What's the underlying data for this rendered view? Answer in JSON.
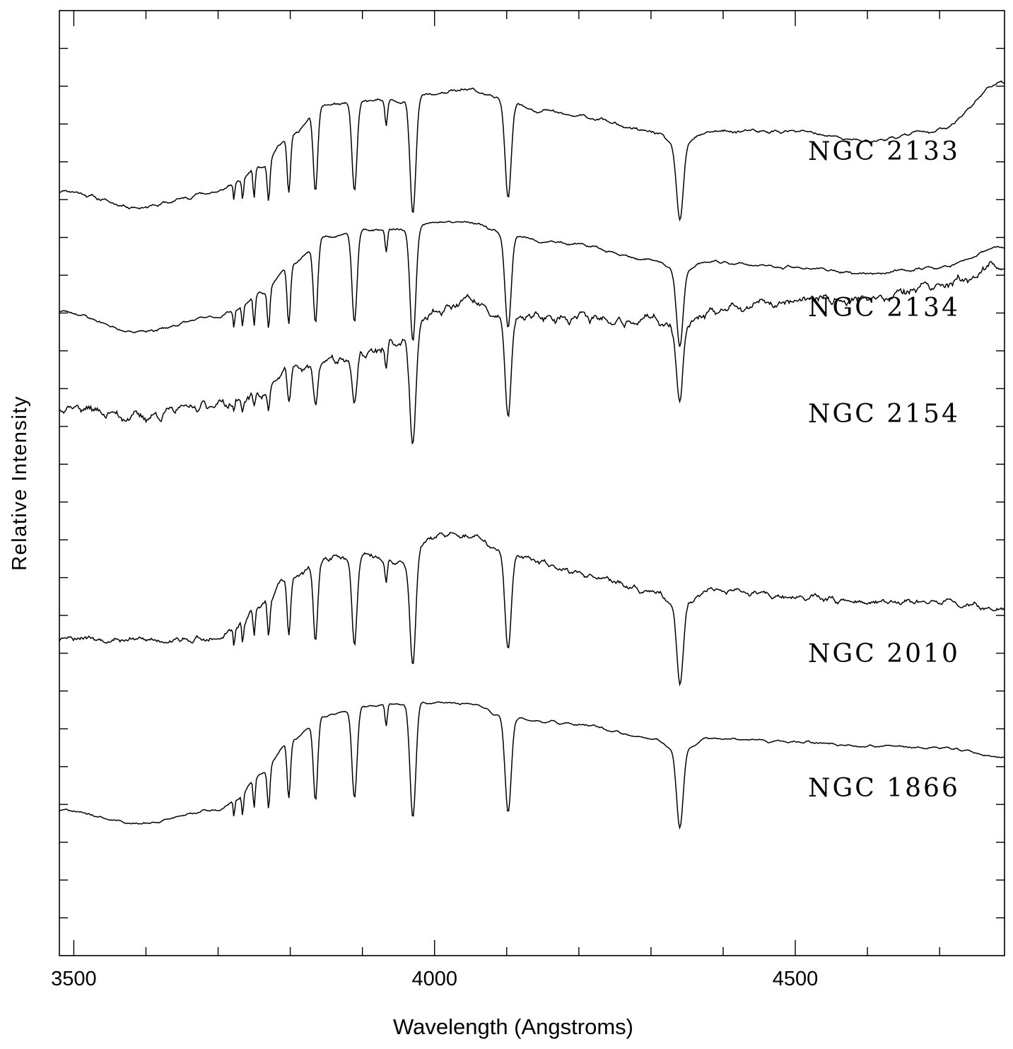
{
  "chart_data": {
    "type": "line",
    "xlabel": "Wavelength (Angstroms)",
    "ylabel": "Relative Intensity",
    "xlim": [
      3480,
      4790
    ],
    "x_ticks": [
      3500,
      4000,
      4500
    ],
    "x_tick_labels": [
      "3500",
      "4000",
      "4500"
    ],
    "x_minor_step": 100,
    "ylim": [
      0,
      25
    ],
    "y_tick_step": 1,
    "grid": false,
    "legend": "none",
    "spectrum_shape": {
      "balmer_lines": [
        {
          "x": 3722,
          "depth": 0.45,
          "width": 1.0
        },
        {
          "x": 3734,
          "depth": 0.55,
          "width": 1.2
        },
        {
          "x": 3750,
          "depth": 0.75,
          "width": 1.4
        },
        {
          "x": 3770,
          "depth": 1.05,
          "width": 1.8
        },
        {
          "x": 3798,
          "depth": 1.55,
          "width": 2.3
        },
        {
          "x": 3835,
          "depth": 2.1,
          "width": 3.0
        },
        {
          "x": 3889,
          "depth": 2.4,
          "width": 3.5
        },
        {
          "x": 3933,
          "depth": 0.6,
          "width": 1.6
        },
        {
          "x": 3970,
          "depth": 3.0,
          "width": 4.0
        },
        {
          "x": 4102,
          "depth": 2.5,
          "width": 4.2
        },
        {
          "x": 4340,
          "depth": 2.0,
          "width": 4.5
        }
      ],
      "continuum_knots_x": [
        3480,
        3590,
        3700,
        3720,
        3760,
        3800,
        3850,
        3900,
        3950,
        4000,
        4050,
        4100,
        4150,
        4200,
        4300,
        4340,
        4380,
        4500,
        4600,
        4700,
        4790
      ]
    },
    "series": [
      {
        "name": "NGC 2133",
        "offset": 19.2,
        "continuum_y": [
          1.05,
          0.6,
          1.0,
          1.2,
          1.7,
          2.5,
          3.3,
          3.4,
          3.4,
          3.6,
          3.7,
          3.4,
          3.15,
          3.0,
          2.6,
          2.2,
          2.6,
          2.6,
          2.35,
          2.65,
          3.95
        ],
        "noise": 0.08,
        "seed": 11
      },
      {
        "name": "NGC 2134",
        "offset": 15.2,
        "continuum_y": [
          1.85,
          1.3,
          1.7,
          1.85,
          2.3,
          3.1,
          3.8,
          4.0,
          4.0,
          4.2,
          4.2,
          3.9,
          3.7,
          3.6,
          3.2,
          2.9,
          3.15,
          3.0,
          2.85,
          3.0,
          3.55
        ],
        "noise": 0.06,
        "seed": 23
      },
      {
        "name": "NGC 2154",
        "offset": 12.0,
        "continuum_y": [
          2.55,
          2.25,
          2.6,
          2.6,
          2.9,
          3.5,
          3.75,
          3.9,
          4.2,
          5.0,
          5.3,
          4.8,
          4.9,
          4.9,
          4.8,
          4.7,
          5.0,
          5.3,
          5.4,
          5.7,
          6.25
        ],
        "noise": 0.22,
        "seed": 37
      },
      {
        "name": "NGC 2010",
        "offset": 6.4,
        "continuum_y": [
          2.05,
          1.95,
          1.95,
          2.2,
          2.9,
          3.6,
          4.1,
          4.2,
          4.0,
          4.7,
          4.7,
          4.2,
          4.0,
          3.7,
          3.3,
          2.8,
          3.3,
          3.1,
          2.95,
          2.95,
          2.75
        ],
        "noise": 0.14,
        "seed": 53
      },
      {
        "name": "NGC 1866",
        "offset": 2.3,
        "continuum_y": [
          1.55,
          1.2,
          1.55,
          1.75,
          2.5,
          3.4,
          4.05,
          4.3,
          4.35,
          4.4,
          4.35,
          4.0,
          3.9,
          3.8,
          3.45,
          3.1,
          3.45,
          3.35,
          3.25,
          3.2,
          2.95
        ],
        "noise": 0.05,
        "seed": 71
      }
    ]
  }
}
